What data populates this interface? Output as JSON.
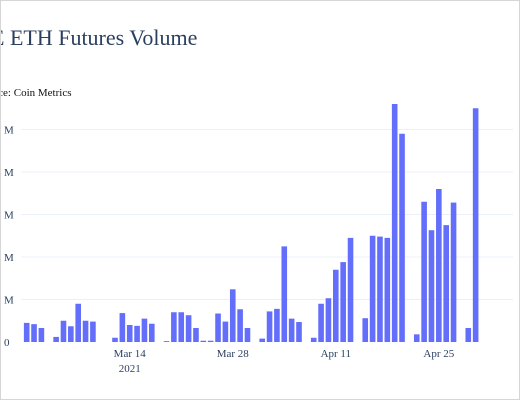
{
  "title": "E ETH Futures Volume",
  "source": "urce: Coin Metrics",
  "colors": {
    "bar": "#636efa",
    "grid": "#ebf0f8",
    "text": "#2a3f5f"
  },
  "chart_data": {
    "type": "bar",
    "title": "E ETH Futures Volume",
    "subtitle": "urce: Coin Metrics",
    "xlabel": "",
    "ylabel": "",
    "ylim": [
      0,
      5.6
    ],
    "grid": true,
    "y_tick_values": [
      0,
      1,
      2,
      3,
      4,
      5
    ],
    "y_tick_labels": [
      "0",
      "M",
      "M",
      "M",
      "M",
      "M"
    ],
    "x_tick_labels": [
      {
        "label": "Mar 14",
        "sub": "2021",
        "index": 14
      },
      {
        "label": "Mar 28",
        "sub": "",
        "index": 28
      },
      {
        "label": "Apr 11",
        "sub": "",
        "index": 42
      },
      {
        "label": "Apr 25",
        "sub": "",
        "index": 56
      }
    ],
    "series": [
      {
        "values": [
          0.45,
          0.42,
          0.33,
          0,
          0.12,
          0.5,
          0.37,
          0.9,
          0.5,
          0.48,
          0,
          0,
          0.1,
          0.68,
          0.4,
          0.38,
          0.55,
          0.43,
          0,
          0.02,
          0.7,
          0.7,
          0.63,
          0.33,
          0.03,
          0.03,
          0.67,
          0.48,
          1.24,
          0.77,
          0.33,
          0,
          0.08,
          0.72,
          0.78,
          2.25,
          0.55,
          0.47,
          0,
          0.1,
          0.9,
          1.03,
          1.7,
          1.88,
          2.45,
          0,
          0.56,
          2.5,
          2.48,
          2.45,
          5.6,
          4.9,
          0,
          0.18,
          3.3,
          2.63,
          3.6,
          2.75,
          3.28,
          0,
          0.33,
          5.5
        ]
      }
    ]
  }
}
